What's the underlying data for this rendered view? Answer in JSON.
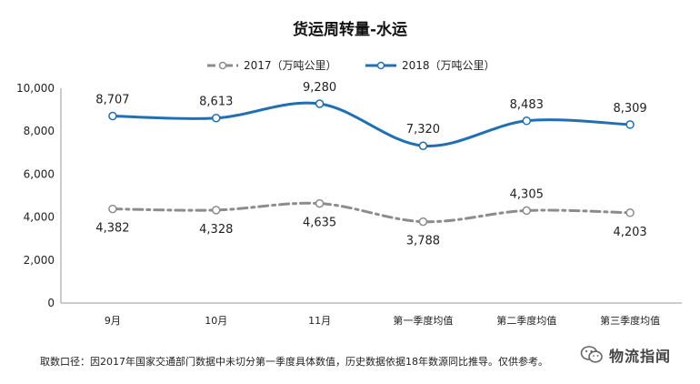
{
  "chart_data": {
    "type": "line",
    "title": "货运周转量-水运",
    "categories": [
      "9月",
      "10月",
      "11月",
      "第一季度均值",
      "第二季度均值",
      "第三季度均值"
    ],
    "series": [
      {
        "name": "2017（万吨公里）",
        "values": [
          4382,
          4328,
          4635,
          3788,
          4305,
          4203
        ],
        "color": "#8c8c8c",
        "style": "dash-dot",
        "labels": [
          "4,382",
          "4,328",
          "4,635",
          "3,788",
          "4,305",
          "4,203"
        ]
      },
      {
        "name": "2018（万吨公里）",
        "values": [
          8707,
          8613,
          9280,
          7320,
          8483,
          8309
        ],
        "color": "#1f6fb5",
        "style": "solid",
        "labels": [
          "8,707",
          "8,613",
          "9,280",
          "7,320",
          "8,483",
          "8,309"
        ]
      }
    ],
    "ylim": [
      0,
      10000
    ],
    "yticks": [
      "0",
      "2,000",
      "4,000",
      "6,000",
      "8,000",
      "10,000"
    ],
    "grid": false,
    "legend_position": "top-center"
  },
  "footnote": "取数口径：因2017年国家交通部门数据中未切分第一季度具体数值，历史数据依据18年数源同比推导。仅供参考。",
  "watermark": {
    "name": "物流指闻",
    "icon": "wechat-icon"
  }
}
